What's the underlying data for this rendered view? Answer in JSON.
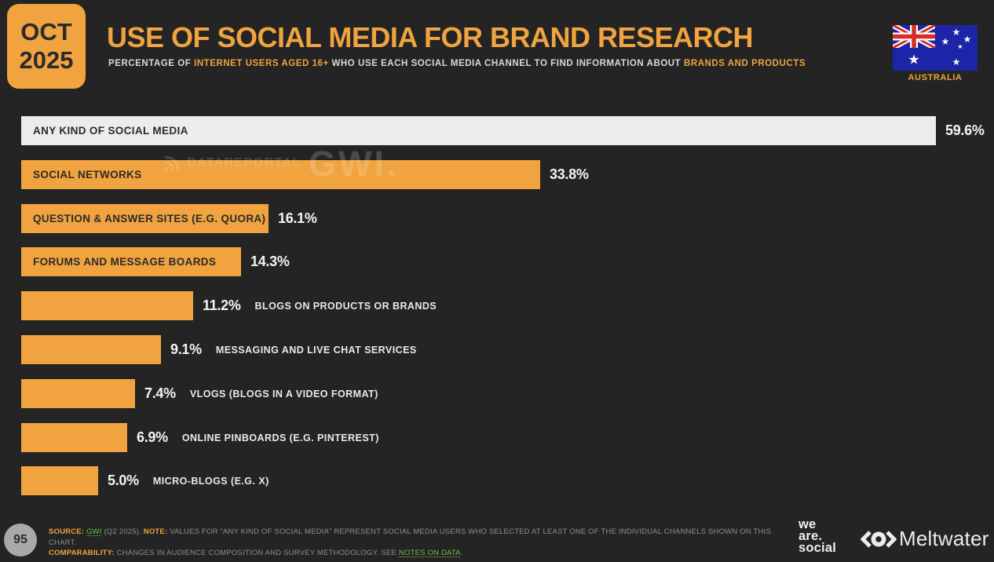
{
  "meta": {
    "background": "#242424",
    "accent": "#F0A33F",
    "bar_light": "#EDECEA"
  },
  "header": {
    "badge_month": "OCT",
    "badge_year": "2025",
    "title": "USE OF SOCIAL MEDIA FOR BRAND RESEARCH",
    "subtitle_parts": [
      {
        "text": "PERCENTAGE OF ",
        "style": "plain"
      },
      {
        "text": "INTERNET USERS AGED 16+",
        "style": "accent"
      },
      {
        "text": " WHO USE EACH SOCIAL MEDIA CHANNEL TO FIND INFORMATION ABOUT ",
        "style": "plain"
      },
      {
        "text": "BRANDS AND PRODUCTS",
        "style": "accent"
      }
    ],
    "country_label": "AUSTRALIA"
  },
  "watermark": {
    "brand": "DATAREPORTAL",
    "partner": "GWI."
  },
  "chart_data": {
    "type": "bar",
    "orientation": "horizontal",
    "unit": "%",
    "xlim": [
      0,
      62
    ],
    "title": "USE OF SOCIAL MEDIA FOR BRAND RESEARCH",
    "categories": [
      "ANY KIND OF SOCIAL MEDIA",
      "SOCIAL NETWORKS",
      "QUESTION & ANSWER SITES (E.G. QUORA)",
      "FORUMS AND MESSAGE BOARDS",
      "BLOGS ON PRODUCTS OR BRANDS",
      "MESSAGING AND LIVE CHAT SERVICES",
      "VLOGS (BLOGS IN A VIDEO FORMAT)",
      "ONLINE PINBOARDS (E.G. PINTEREST)",
      "MICRO-BLOGS (E.G. X)"
    ],
    "values": [
      59.6,
      33.8,
      16.1,
      14.3,
      11.2,
      9.1,
      7.4,
      6.9,
      5.0
    ],
    "value_labels": [
      "59.6%",
      "33.8%",
      "16.1%",
      "14.3%",
      "11.2%",
      "9.1%",
      "7.4%",
      "6.9%",
      "5.0%"
    ],
    "bar_styles": [
      "light",
      "orange",
      "orange",
      "orange",
      "orange",
      "orange",
      "orange",
      "orange",
      "orange"
    ],
    "label_positions": [
      "inside",
      "inside",
      "inside",
      "inside",
      "outside",
      "outside",
      "outside",
      "outside",
      "outside"
    ],
    "legend": "none",
    "grid": false
  },
  "footer": {
    "page_number": "95",
    "source_line1": [
      {
        "text": "SOURCE: ",
        "style": "accent"
      },
      {
        "text": "GWI",
        "style": "link"
      },
      {
        "text": " (Q2 2025). ",
        "style": "plain"
      },
      {
        "text": "NOTE: ",
        "style": "accent"
      },
      {
        "text": "VALUES FOR “ANY KIND OF SOCIAL MEDIA” REPRESENT SOCIAL MEDIA USERS WHO SELECTED AT LEAST ONE OF THE INDIVIDUAL CHANNELS SHOWN ON THIS CHART.",
        "style": "plain"
      }
    ],
    "source_line2": [
      {
        "text": "COMPARABILITY: ",
        "style": "accent"
      },
      {
        "text": "CHANGES IN AUDIENCE COMPOSITION AND SURVEY METHODOLOGY. SEE ",
        "style": "plain"
      },
      {
        "text": "NOTES ON DATA",
        "style": "link"
      },
      {
        "text": ".",
        "style": "plain"
      }
    ],
    "we_are_social_lines": [
      "we",
      "are.",
      "social"
    ],
    "meltwater_label": "Meltwater"
  }
}
